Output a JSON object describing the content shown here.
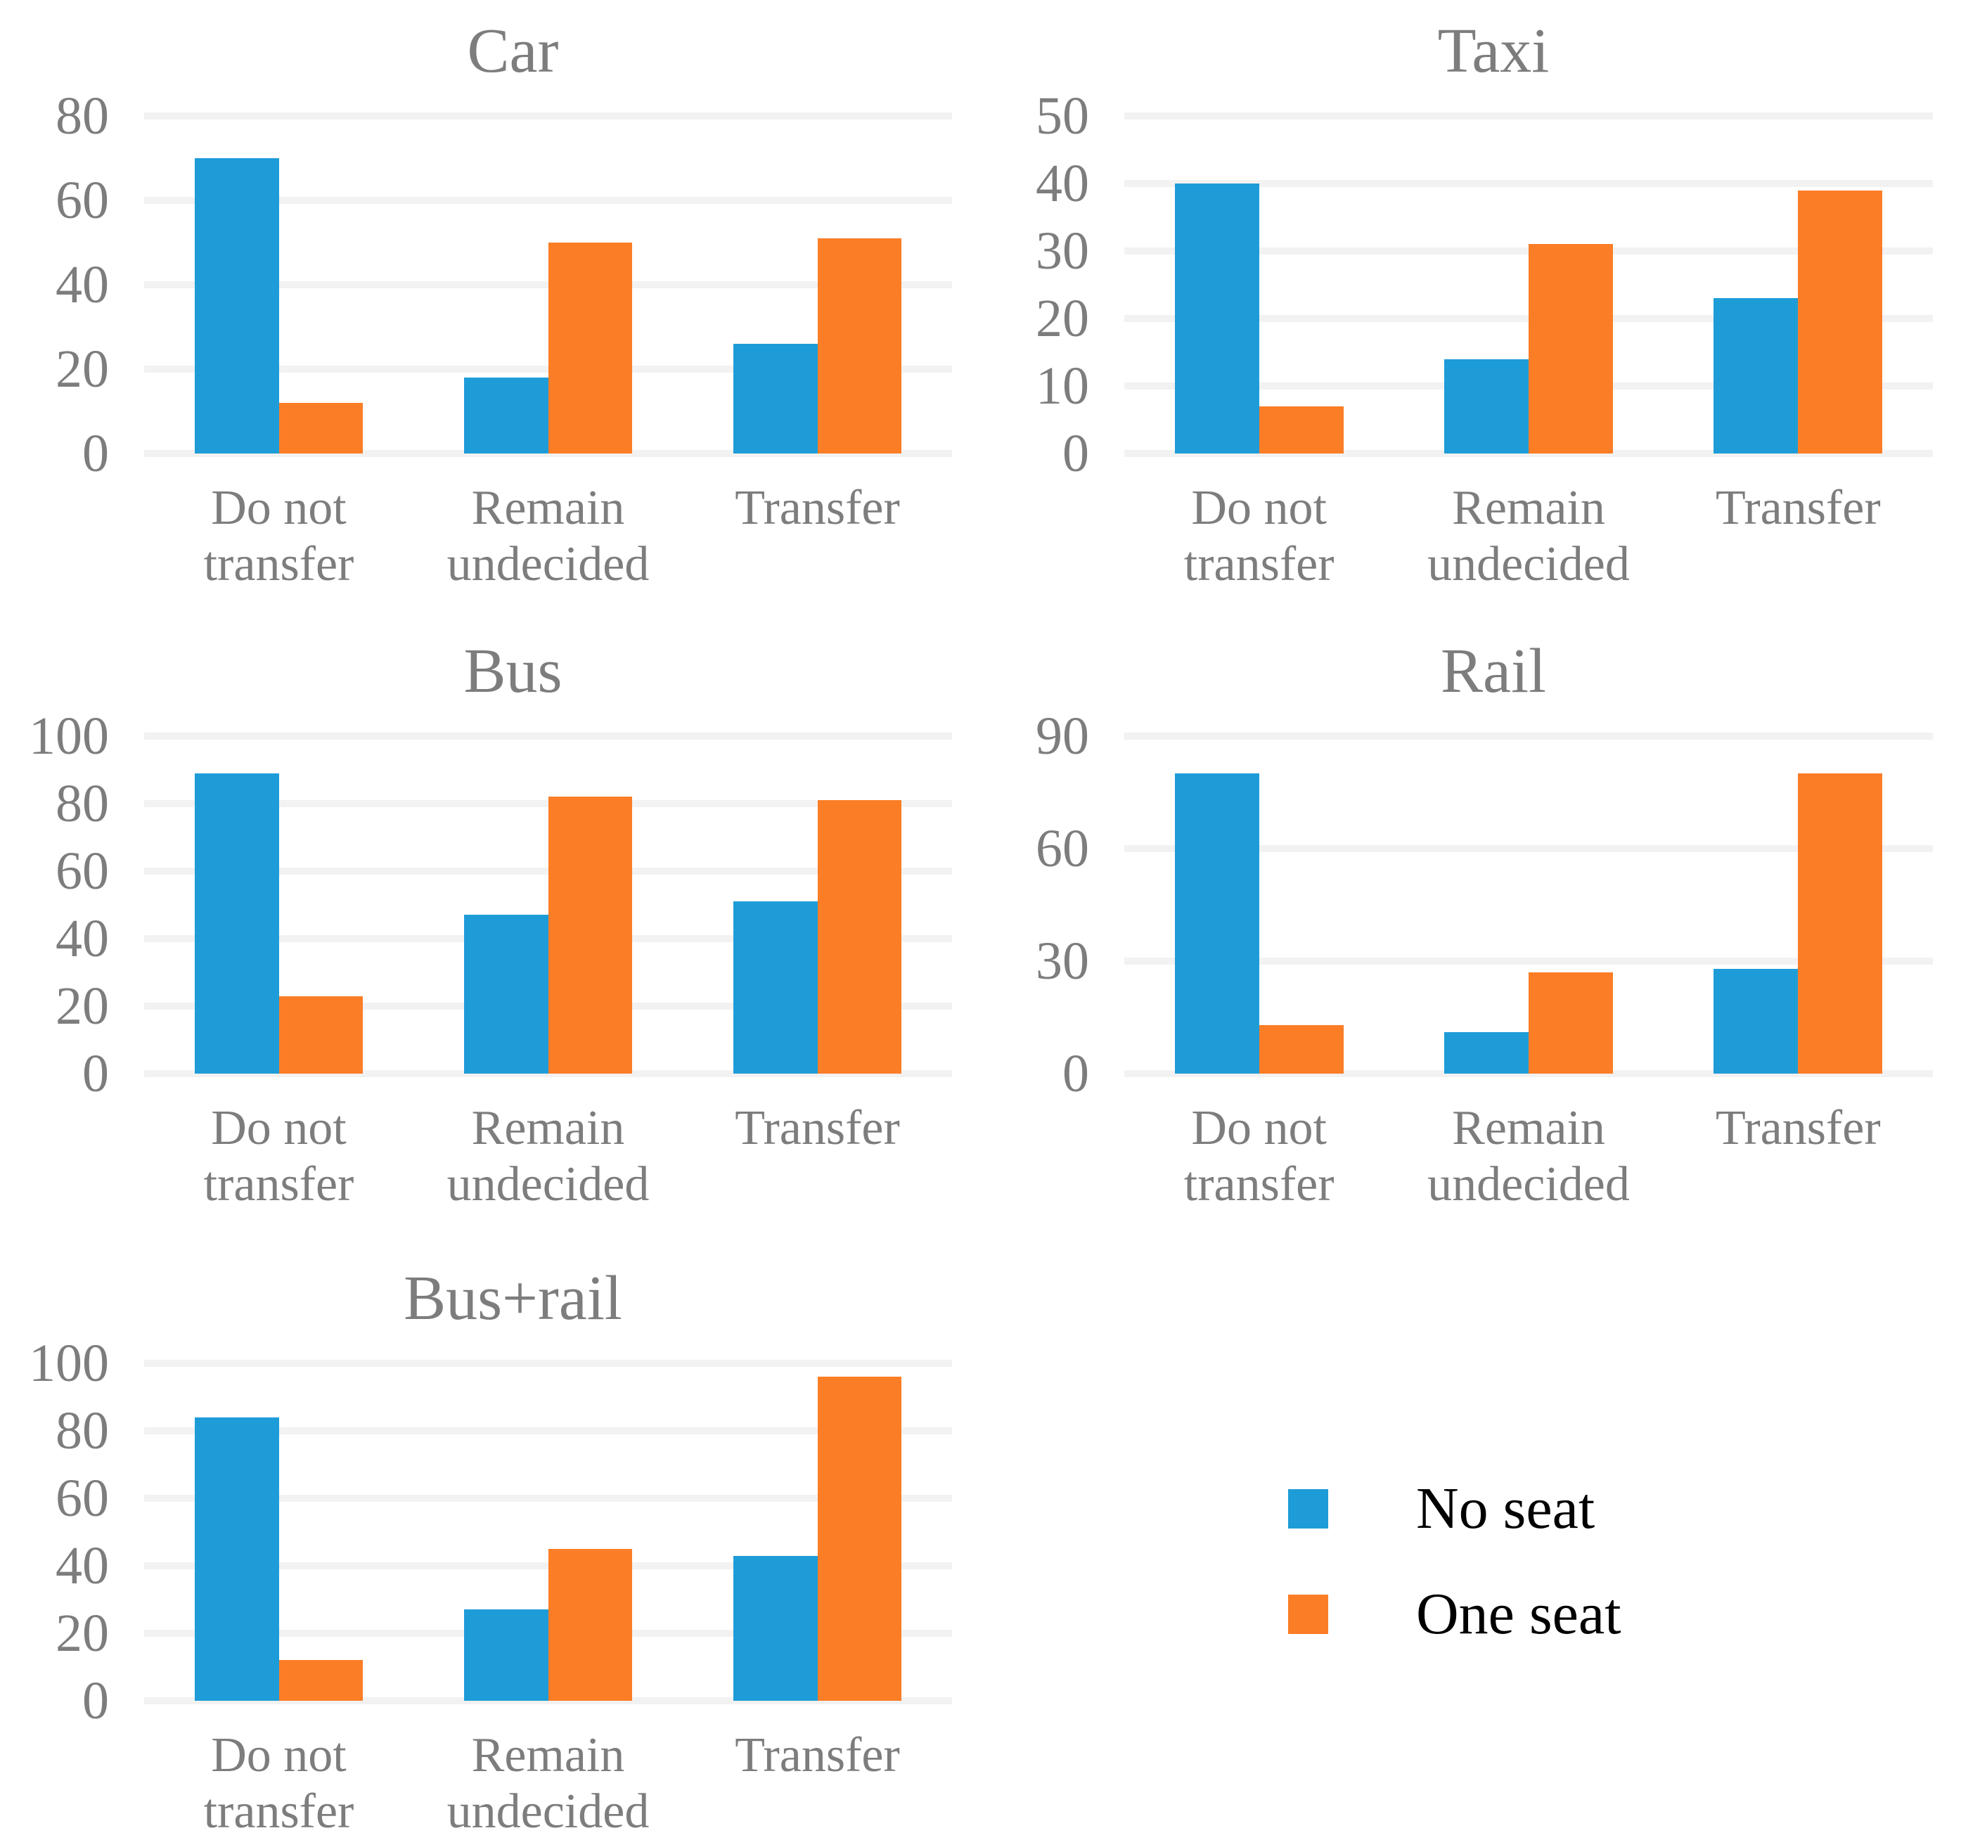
{
  "colors": {
    "no_seat": "#1E9CD8",
    "one_seat": "#FB7D26",
    "gridline": "#F2F2F2",
    "axis_text": "#7D7D7D",
    "legend_text": "#000000",
    "background": "#FFFFFF"
  },
  "legend": {
    "position": "bottom-right",
    "items": [
      {
        "label": "No seat",
        "color": "#1E9CD8"
      },
      {
        "label": "One seat",
        "color": "#FB7D26"
      }
    ]
  },
  "chart_data": [
    {
      "type": "bar",
      "title": "Car",
      "categories": [
        "Do not transfer",
        "Remain undecided",
        "Transfer"
      ],
      "categories_lines": [
        [
          "Do not",
          "transfer"
        ],
        [
          "Remain",
          "undecided"
        ],
        [
          "Transfer",
          ""
        ]
      ],
      "series": [
        {
          "name": "No seat",
          "values": [
            70,
            18,
            26
          ]
        },
        {
          "name": "One seat",
          "values": [
            12,
            50,
            51
          ]
        }
      ],
      "ylim": [
        0,
        80
      ],
      "ymax": 80,
      "yticks": [
        0,
        20,
        40,
        60,
        80
      ],
      "grid": true
    },
    {
      "type": "bar",
      "title": "Taxi",
      "categories": [
        "Do not transfer",
        "Remain undecided",
        "Transfer"
      ],
      "categories_lines": [
        [
          "Do not",
          "transfer"
        ],
        [
          "Remain",
          "undecided"
        ],
        [
          "Transfer",
          ""
        ]
      ],
      "series": [
        {
          "name": "No seat",
          "values": [
            40,
            14,
            23
          ]
        },
        {
          "name": "One seat",
          "values": [
            7,
            31,
            39
          ]
        }
      ],
      "ylim": [
        0,
        50
      ],
      "ymax": 50,
      "yticks": [
        0,
        10,
        20,
        30,
        40,
        50
      ],
      "grid": true
    },
    {
      "type": "bar",
      "title": "Bus",
      "categories": [
        "Do not transfer",
        "Remain undecided",
        "Transfer"
      ],
      "categories_lines": [
        [
          "Do not",
          "transfer"
        ],
        [
          "Remain",
          "undecided"
        ],
        [
          "Transfer",
          ""
        ]
      ],
      "series": [
        {
          "name": "No seat",
          "values": [
            89,
            47,
            51
          ]
        },
        {
          "name": "One seat",
          "values": [
            23,
            82,
            81
          ]
        }
      ],
      "ylim": [
        0,
        100
      ],
      "ymax": 100,
      "yticks": [
        0,
        20,
        40,
        60,
        80,
        100
      ],
      "grid": true
    },
    {
      "type": "bar",
      "title": "Rail",
      "categories": [
        "Do not transfer",
        "Remain undecided",
        "Transfer"
      ],
      "categories_lines": [
        [
          "Do not",
          "transfer"
        ],
        [
          "Remain",
          "undecided"
        ],
        [
          "Transfer",
          ""
        ]
      ],
      "series": [
        {
          "name": "No seat",
          "values": [
            80,
            11,
            28
          ]
        },
        {
          "name": "One seat",
          "values": [
            13,
            27,
            80
          ]
        }
      ],
      "ylim": [
        0,
        90
      ],
      "ymax": 90,
      "yticks": [
        0,
        30,
        60,
        90
      ],
      "grid": true
    },
    {
      "type": "bar",
      "title": "Bus+rail",
      "categories": [
        "Do not transfer",
        "Remain undecided",
        "Transfer"
      ],
      "categories_lines": [
        [
          "Do not",
          "transfer"
        ],
        [
          "Remain",
          "undecided"
        ],
        [
          "Transfer",
          ""
        ]
      ],
      "series": [
        {
          "name": "No seat",
          "values": [
            84,
            27,
            43
          ]
        },
        {
          "name": "One seat",
          "values": [
            12,
            45,
            96
          ]
        }
      ],
      "ylim": [
        0,
        100
      ],
      "ymax": 100,
      "yticks": [
        0,
        20,
        40,
        60,
        80,
        100
      ],
      "grid": true
    }
  ]
}
